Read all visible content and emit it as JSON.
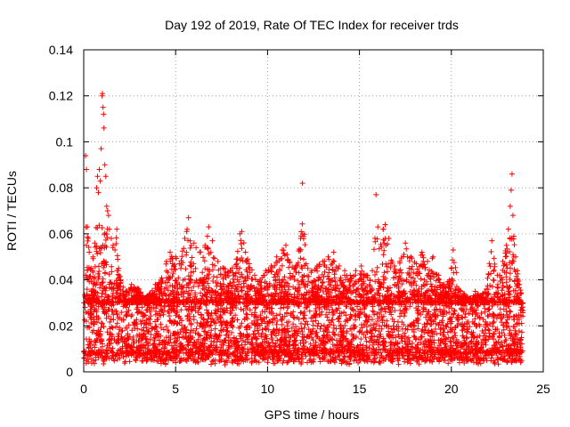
{
  "chart_data": {
    "type": "scatter",
    "title": "Day 192 of 2019, Rate Of TEC Index for receiver trds",
    "xlabel": "GPS time / hours",
    "ylabel": "ROTI / TECUs",
    "xlim": [
      0,
      25
    ],
    "ylim": [
      0,
      0.14
    ],
    "x_ticks": [
      0,
      5,
      10,
      15,
      20,
      25
    ],
    "x_tick_labels": [
      "0",
      "5",
      "10",
      "15",
      "20",
      "25"
    ],
    "y_ticks": [
      0,
      0.02,
      0.04,
      0.06,
      0.08,
      0.1,
      0.12,
      0.14
    ],
    "y_tick_labels": [
      "0",
      "0.02",
      "0.04",
      "0.06",
      "0.08",
      "0.1",
      "0.12",
      "0.14"
    ],
    "grid": true,
    "marker": "+",
    "series": [
      {
        "name": "ROTI",
        "color": "#ff0000",
        "points": [
          [
            0.1,
            0.094
          ],
          [
            0.15,
            0.088
          ],
          [
            0.2,
            0.063
          ],
          [
            0.25,
            0.058
          ],
          [
            0.3,
            0.052
          ],
          [
            0.4,
            0.045
          ],
          [
            0.5,
            0.05
          ],
          [
            0.6,
            0.056
          ],
          [
            0.7,
            0.08
          ],
          [
            0.75,
            0.085
          ],
          [
            0.8,
            0.078
          ],
          [
            0.85,
            0.088
          ],
          [
            0.9,
            0.083
          ],
          [
            0.95,
            0.097
          ],
          [
            1.0,
            0.12
          ],
          [
            1.02,
            0.121
          ],
          [
            1.05,
            0.115
          ],
          [
            1.08,
            0.112
          ],
          [
            1.1,
            0.106
          ],
          [
            1.15,
            0.09
          ],
          [
            1.2,
            0.085
          ],
          [
            1.25,
            0.072
          ],
          [
            1.3,
            0.07
          ],
          [
            1.35,
            0.068
          ],
          [
            1.4,
            0.062
          ],
          [
            1.5,
            0.058
          ],
          [
            1.6,
            0.055
          ],
          [
            1.7,
            0.053
          ],
          [
            1.8,
            0.062
          ],
          [
            1.9,
            0.045
          ],
          [
            2.0,
            0.04
          ],
          [
            2.3,
            0.035
          ],
          [
            2.6,
            0.038
          ],
          [
            3.0,
            0.036
          ],
          [
            3.3,
            0.032
          ],
          [
            3.6,
            0.034
          ],
          [
            3.9,
            0.038
          ],
          [
            4.2,
            0.04
          ],
          [
            4.5,
            0.048
          ],
          [
            4.7,
            0.052
          ],
          [
            5.0,
            0.05
          ],
          [
            5.2,
            0.047
          ],
          [
            5.5,
            0.058
          ],
          [
            5.6,
            0.061
          ],
          [
            5.7,
            0.067
          ],
          [
            6.0,
            0.056
          ],
          [
            6.3,
            0.052
          ],
          [
            6.6,
            0.055
          ],
          [
            6.8,
            0.063
          ],
          [
            7.0,
            0.057
          ],
          [
            7.3,
            0.048
          ],
          [
            7.6,
            0.045
          ],
          [
            8.0,
            0.044
          ],
          [
            8.3,
            0.049
          ],
          [
            8.5,
            0.06
          ],
          [
            8.6,
            0.061
          ],
          [
            8.8,
            0.052
          ],
          [
            9.0,
            0.047
          ],
          [
            9.3,
            0.042
          ],
          [
            9.6,
            0.04
          ],
          [
            9.9,
            0.044
          ],
          [
            10.2,
            0.046
          ],
          [
            10.5,
            0.05
          ],
          [
            10.8,
            0.053
          ],
          [
            11.0,
            0.055
          ],
          [
            11.2,
            0.048
          ],
          [
            11.5,
            0.045
          ],
          [
            11.8,
            0.058
          ],
          [
            11.9,
            0.082
          ],
          [
            12.1,
            0.047
          ],
          [
            12.4,
            0.044
          ],
          [
            12.7,
            0.046
          ],
          [
            13.0,
            0.048
          ],
          [
            13.3,
            0.05
          ],
          [
            13.6,
            0.052
          ],
          [
            13.9,
            0.046
          ],
          [
            14.2,
            0.044
          ],
          [
            14.5,
            0.042
          ],
          [
            14.8,
            0.044
          ],
          [
            15.1,
            0.046
          ],
          [
            15.4,
            0.042
          ],
          [
            15.7,
            0.044
          ],
          [
            15.9,
            0.077
          ],
          [
            16.0,
            0.063
          ],
          [
            16.3,
            0.062
          ],
          [
            16.4,
            0.064
          ],
          [
            16.6,
            0.058
          ],
          [
            16.9,
            0.046
          ],
          [
            17.2,
            0.048
          ],
          [
            17.5,
            0.056
          ],
          [
            17.8,
            0.05
          ],
          [
            18.1,
            0.047
          ],
          [
            18.4,
            0.052
          ],
          [
            18.7,
            0.048
          ],
          [
            19.0,
            0.05
          ],
          [
            19.3,
            0.042
          ],
          [
            19.6,
            0.038
          ],
          [
            19.9,
            0.04
          ],
          [
            20.1,
            0.053
          ],
          [
            20.4,
            0.036
          ],
          [
            20.7,
            0.034
          ],
          [
            21.0,
            0.032
          ],
          [
            21.3,
            0.035
          ],
          [
            21.6,
            0.033
          ],
          [
            21.9,
            0.036
          ],
          [
            22.2,
            0.057
          ],
          [
            22.5,
            0.042
          ],
          [
            22.8,
            0.048
          ],
          [
            23.0,
            0.055
          ],
          [
            23.1,
            0.062
          ],
          [
            23.2,
            0.072
          ],
          [
            23.25,
            0.079
          ],
          [
            23.3,
            0.086
          ],
          [
            23.35,
            0.068
          ],
          [
            23.4,
            0.059
          ],
          [
            23.5,
            0.05
          ],
          [
            23.6,
            0.044
          ],
          [
            23.7,
            0.038
          ],
          [
            23.8,
            0.034
          ]
        ]
      }
    ],
    "dense_band": {
      "description": "continuous dense band of ROTI points across the day",
      "x_range": [
        0,
        23.9
      ],
      "typical_lower": 0.008,
      "typical_upper": 0.03,
      "min": 0.003
    }
  }
}
